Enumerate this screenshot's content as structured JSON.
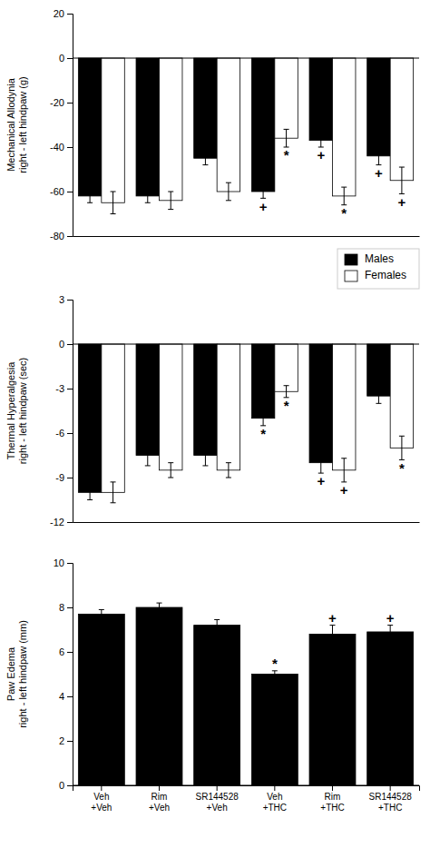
{
  "chart_data": [
    {
      "type": "bar",
      "y_label": "Mechanical Allodynia\nright - left hindpaw (g)",
      "categories": [
        null,
        null,
        null,
        null,
        null,
        null
      ],
      "series": [
        {
          "color": "#000000",
          "values": [
            -62,
            -62,
            -45,
            -60,
            -37,
            -44
          ],
          "errors": [
            3,
            3,
            3,
            3,
            3,
            4
          ]
        },
        {
          "color": "#ffffff",
          "values": [
            -65,
            -64,
            -60,
            -36,
            -62,
            -55
          ],
          "errors": [
            5,
            4,
            4,
            4,
            4,
            6
          ]
        }
      ],
      "ylim": [
        -80,
        20
      ],
      "yticks": [
        -80,
        -60,
        -40,
        -20,
        0,
        20
      ],
      "annotations": [
        {
          "text": "+",
          "index": 3,
          "series": 0
        },
        {
          "text": "+",
          "index": 4,
          "series": 0
        },
        {
          "text": "*",
          "index": 3,
          "series": 1
        },
        {
          "text": "*",
          "index": 4,
          "series": 1
        },
        {
          "text": "+",
          "index": 5,
          "series": 0
        },
        {
          "text": "+",
          "index": 5,
          "series": 1
        }
      ]
    },
    {
      "type": "bar",
      "y_label": "Thermal Hyperalgesia\nright - left hindpaw (sec)",
      "categories": [
        null,
        null,
        null,
        null,
        null,
        null
      ],
      "series": [
        {
          "name": "Males",
          "color": "#000000",
          "values": [
            -10,
            -7.5,
            -7.5,
            -5,
            -8,
            -3.5
          ],
          "errors": [
            0.5,
            0.7,
            0.7,
            0.5,
            0.7,
            0.5
          ]
        },
        {
          "name": "Females",
          "color": "#ffffff",
          "values": [
            -10,
            -8.5,
            -8.5,
            -3.2,
            -8.5,
            -7
          ],
          "errors": [
            0.7,
            0.5,
            0.5,
            0.4,
            0.8,
            0.8
          ]
        }
      ],
      "ylim": [
        -12,
        3
      ],
      "yticks": [
        -12,
        -9,
        -6,
        -3,
        0,
        3
      ],
      "legend": "upper right",
      "annotations": [
        {
          "text": "*",
          "index": 3,
          "series": 0
        },
        {
          "text": "*",
          "index": 3,
          "series": 1
        },
        {
          "text": "+",
          "index": 4,
          "series": 0
        },
        {
          "text": "+",
          "index": 4,
          "series": 1
        },
        {
          "text": "*",
          "index": 5,
          "series": 1
        }
      ]
    },
    {
      "type": "bar",
      "y_label": "Paw Edema\nright - left hindpaw (mm)",
      "categories": [
        "Veh\n+Veh",
        "Rim\n+Veh",
        "SR144528\n+Veh",
        "Veh\n+THC",
        "Rim\n+THC",
        "SR144528\n+THC"
      ],
      "series": [
        {
          "color": "#000000",
          "values": [
            7.7,
            8.0,
            7.2,
            5.0,
            6.8,
            6.9
          ],
          "errors": [
            0.2,
            0.2,
            0.25,
            0.15,
            0.4,
            0.3
          ]
        }
      ],
      "ylim": [
        0,
        10
      ],
      "yticks": [
        0,
        2,
        4,
        6,
        8,
        10
      ],
      "annotations": [
        {
          "text": "*",
          "index": 3,
          "series": 0
        },
        {
          "text": "+",
          "index": 4,
          "series": 0
        },
        {
          "text": "+",
          "index": 5,
          "series": 0
        }
      ]
    }
  ]
}
